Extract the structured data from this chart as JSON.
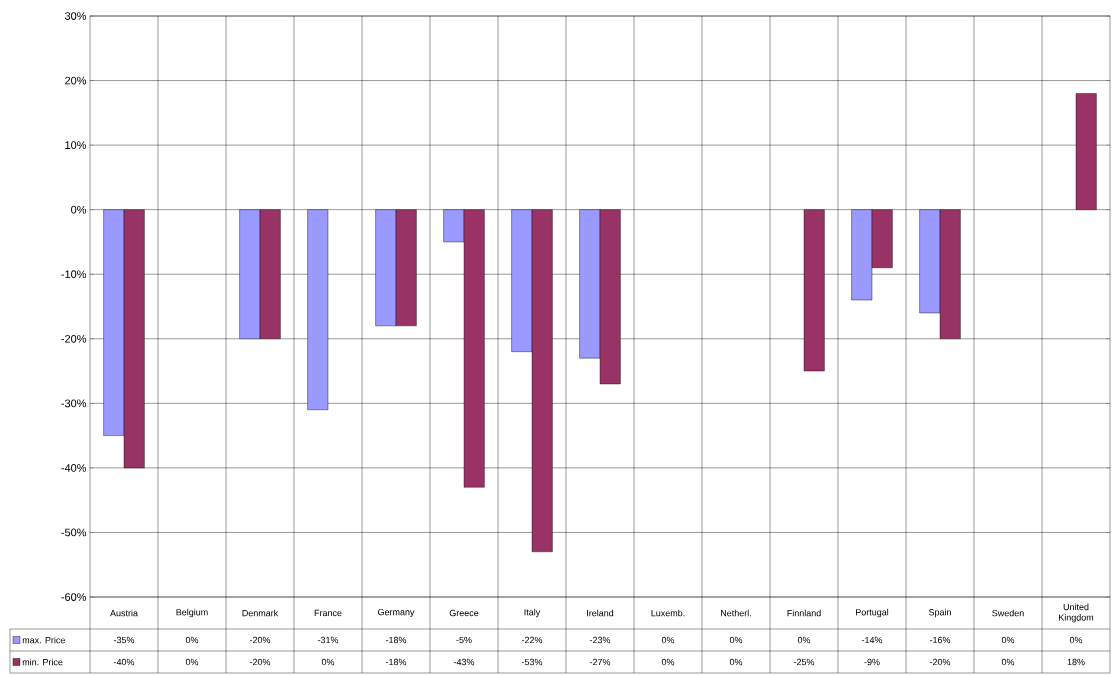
{
  "chart_data": {
    "type": "bar",
    "categories": [
      "Austria",
      "Belgium",
      "Denmark",
      "France",
      "Germany",
      "Greece",
      "Italy",
      "Ireland",
      "Luxemb.",
      "Netherl.",
      "Finnland",
      "Portugal",
      "Spain",
      "Sweden",
      "United Kingdom"
    ],
    "series": [
      {
        "name": "max. Price",
        "color": "#9999ff",
        "values": [
          -35,
          0,
          -20,
          -31,
          -18,
          -5,
          -22,
          -23,
          0,
          0,
          0,
          -14,
          -16,
          0,
          0
        ],
        "value_labels": [
          "-35%",
          "0%",
          "-20%",
          "-31%",
          "-18%",
          "-5%",
          "-22%",
          "-23%",
          "0%",
          "0%",
          "0%",
          "-14%",
          "-16%",
          "0%",
          "0%"
        ]
      },
      {
        "name": "min. Price",
        "color": "#993366",
        "values": [
          -40,
          0,
          -20,
          0,
          -18,
          -43,
          -53,
          -27,
          0,
          0,
          -25,
          -9,
          -20,
          0,
          18
        ],
        "value_labels": [
          "-40%",
          "0%",
          "-20%",
          "0%",
          "-18%",
          "-43%",
          "-53%",
          "-27%",
          "0%",
          "0%",
          "-25%",
          "-9%",
          "-20%",
          "0%",
          "18%"
        ]
      }
    ],
    "ylim": [
      -60,
      30
    ],
    "yticks": [
      {
        "value": -60,
        "label": "-60%"
      },
      {
        "value": -50,
        "label": "-50%"
      },
      {
        "value": -40,
        "label": "-40%"
      },
      {
        "value": -30,
        "label": "-30%"
      },
      {
        "value": -20,
        "label": "-20%"
      },
      {
        "value": -10,
        "label": "-10%"
      },
      {
        "value": 0,
        "label": "0%"
      },
      {
        "value": 10,
        "label": "10%"
      },
      {
        "value": 20,
        "label": "20%"
      },
      {
        "value": 30,
        "label": "30%"
      }
    ],
    "grid": true,
    "legend": "bottom left"
  }
}
